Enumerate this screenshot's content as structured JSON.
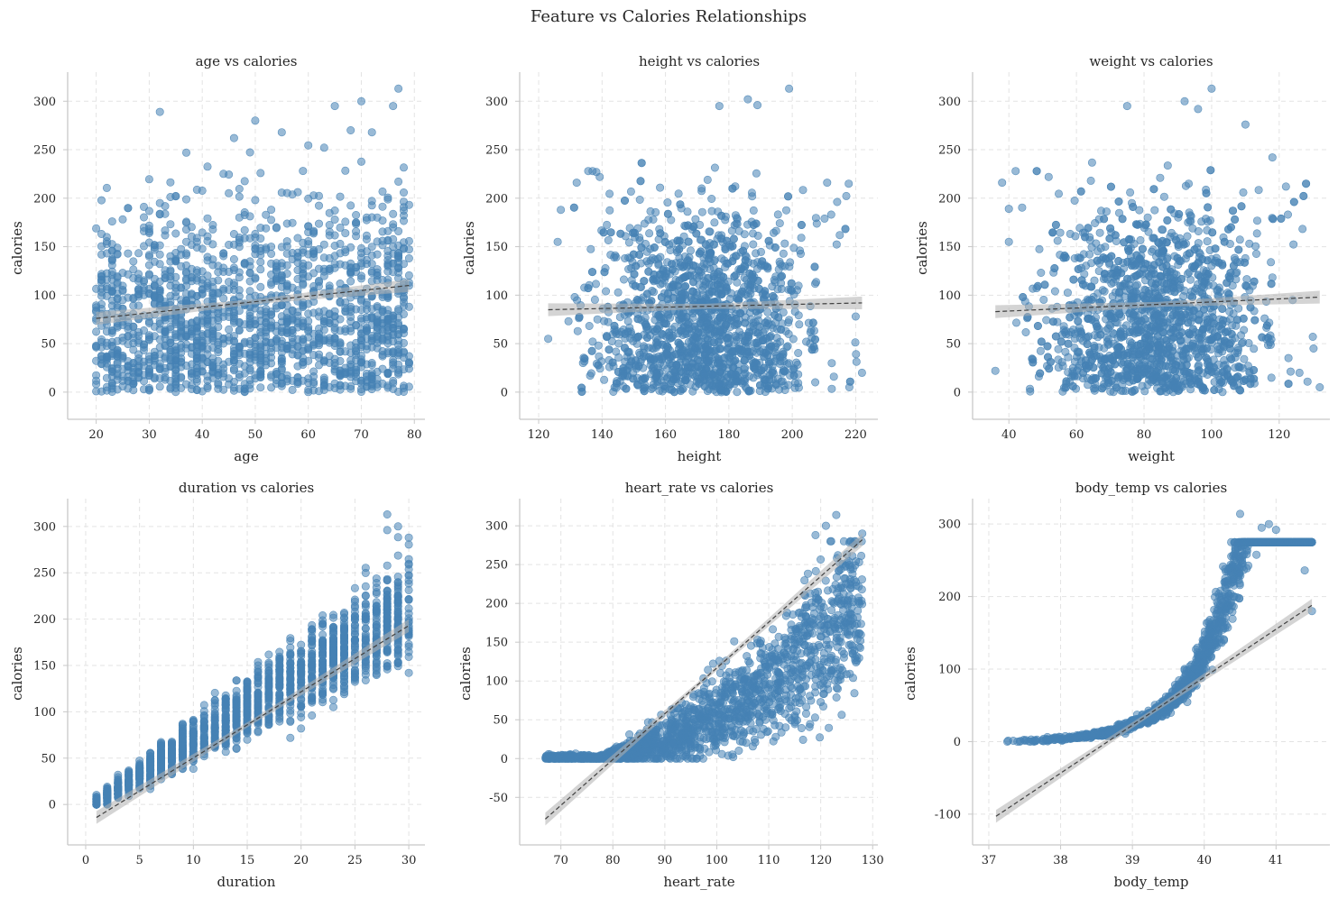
{
  "page_title": "Feature vs Calories Relationships",
  "colors": {
    "points": "#4682b4",
    "trend": "#404040",
    "band": "#b0b0b0"
  },
  "chart_data": [
    {
      "type": "scatter",
      "title": "age vs calories",
      "xlabel": "age",
      "ylabel": "calories",
      "xlim": [
        17,
        82
      ],
      "ylim": [
        -15,
        330
      ],
      "xticks": [
        20,
        30,
        40,
        50,
        60,
        70,
        80
      ],
      "yticks": [
        0,
        50,
        100,
        150,
        200,
        250,
        300
      ],
      "x_range": [
        20,
        79
      ],
      "integer_x": true,
      "shape": "cloud",
      "trend": {
        "x": [
          20,
          79
        ],
        "y": [
          76,
          110
        ]
      },
      "outliers": [
        [
          32,
          289
        ],
        [
          50,
          280
        ],
        [
          77,
          313
        ],
        [
          70,
          300
        ],
        [
          76,
          295
        ],
        [
          65,
          295
        ],
        [
          55,
          268
        ],
        [
          72,
          268
        ],
        [
          46,
          262
        ],
        [
          68,
          270
        ]
      ]
    },
    {
      "type": "scatter",
      "title": "height vs calories",
      "xlabel": "height",
      "ylabel": "calories",
      "xlim": [
        118,
        227
      ],
      "ylim": [
        -15,
        330
      ],
      "xticks": [
        120,
        140,
        160,
        180,
        200,
        220
      ],
      "yticks": [
        0,
        50,
        100,
        150,
        200,
        250,
        300
      ],
      "x_range": [
        123,
        222
      ],
      "integer_x": false,
      "shape": "cloud",
      "trend": {
        "x": [
          123,
          222
        ],
        "y": [
          85,
          92
        ]
      },
      "outliers": [
        [
          123,
          55
        ],
        [
          126,
          155
        ],
        [
          127,
          188
        ],
        [
          132,
          216
        ],
        [
          137,
          228
        ],
        [
          186,
          302
        ],
        [
          199,
          313
        ],
        [
          177,
          295
        ],
        [
          189,
          296
        ],
        [
          215,
          162
        ],
        [
          220,
          78
        ],
        [
          222,
          20
        ],
        [
          218,
          5
        ],
        [
          211,
          216
        ],
        [
          134,
          30
        ]
      ]
    },
    {
      "type": "scatter",
      "title": "weight vs calories",
      "xlabel": "weight",
      "ylabel": "calories",
      "xlim": [
        33,
        135
      ],
      "ylim": [
        -15,
        330
      ],
      "xticks": [
        40,
        60,
        80,
        100,
        120
      ],
      "yticks": [
        0,
        50,
        100,
        150,
        200,
        250,
        300
      ],
      "x_range": [
        36,
        132
      ],
      "integer_x": false,
      "shape": "cloud",
      "trend": {
        "x": [
          36,
          132
        ],
        "y": [
          83,
          98
        ]
      },
      "outliers": [
        [
          36,
          22
        ],
        [
          38,
          216
        ],
        [
          40,
          189
        ],
        [
          42,
          228
        ],
        [
          75,
          295
        ],
        [
          92,
          300
        ],
        [
          100,
          313
        ],
        [
          96,
          292
        ],
        [
          110,
          276
        ],
        [
          118,
          242
        ],
        [
          122,
          212
        ],
        [
          124,
          95
        ],
        [
          126,
          20
        ],
        [
          132,
          5
        ],
        [
          40,
          155
        ]
      ]
    },
    {
      "type": "scatter",
      "title": "duration vs calories",
      "xlabel": "duration",
      "ylabel": "calories",
      "xlim": [
        -0.5,
        31.5
      ],
      "ylim": [
        -30,
        330
      ],
      "xticks": [
        0,
        5,
        10,
        15,
        20,
        25,
        30
      ],
      "yticks": [
        0,
        50,
        100,
        150,
        200,
        250,
        300
      ],
      "x_range": [
        1,
        30
      ],
      "integer_x": true,
      "shape": "duration",
      "trend": {
        "x": [
          1,
          30
        ],
        "y": [
          -14,
          193
        ]
      },
      "outliers": [
        [
          28,
          313
        ],
        [
          29,
          300
        ],
        [
          30,
          288
        ],
        [
          28,
          296
        ],
        [
          30,
          142
        ]
      ]
    },
    {
      "type": "scatter",
      "title": "heart_rate vs calories",
      "xlabel": "heart_rate",
      "ylabel": "calories",
      "xlim": [
        64.5,
        131
      ],
      "ylim": [
        -95,
        335
      ],
      "xticks": [
        70,
        80,
        90,
        100,
        110,
        120,
        130
      ],
      "yticks": [
        -50,
        0,
        50,
        100,
        150,
        200,
        250,
        300
      ],
      "x_range": [
        67,
        128
      ],
      "integer_x": true,
      "shape": "heart",
      "trend": {
        "x": [
          67,
          128
        ],
        "y": [
          -78,
          282
        ]
      },
      "outliers": [
        [
          123,
          314
        ],
        [
          121,
          300
        ],
        [
          128,
          290
        ],
        [
          119,
          288
        ],
        [
          120,
          165
        ],
        [
          117,
          210
        ]
      ]
    },
    {
      "type": "scatter",
      "title": "body_temp vs calories",
      "xlabel": "body_temp",
      "ylabel": "calories",
      "xlim": [
        36.95,
        41.75
      ],
      "ylim": [
        -125,
        335
      ],
      "xticks": [
        37,
        38,
        39,
        40,
        41
      ],
      "yticks": [
        -100,
        0,
        100,
        200,
        300
      ],
      "x_range": [
        37.1,
        41.5
      ],
      "integer_x": false,
      "shape": "temp",
      "trend": {
        "x": [
          37.1,
          41.5
        ],
        "y": [
          -103,
          188
        ]
      },
      "outliers": [
        [
          40.5,
          314
        ],
        [
          40.9,
          300
        ],
        [
          40.8,
          295
        ],
        [
          41.0,
          292
        ],
        [
          41.4,
          236
        ],
        [
          41.5,
          180
        ]
      ]
    }
  ]
}
